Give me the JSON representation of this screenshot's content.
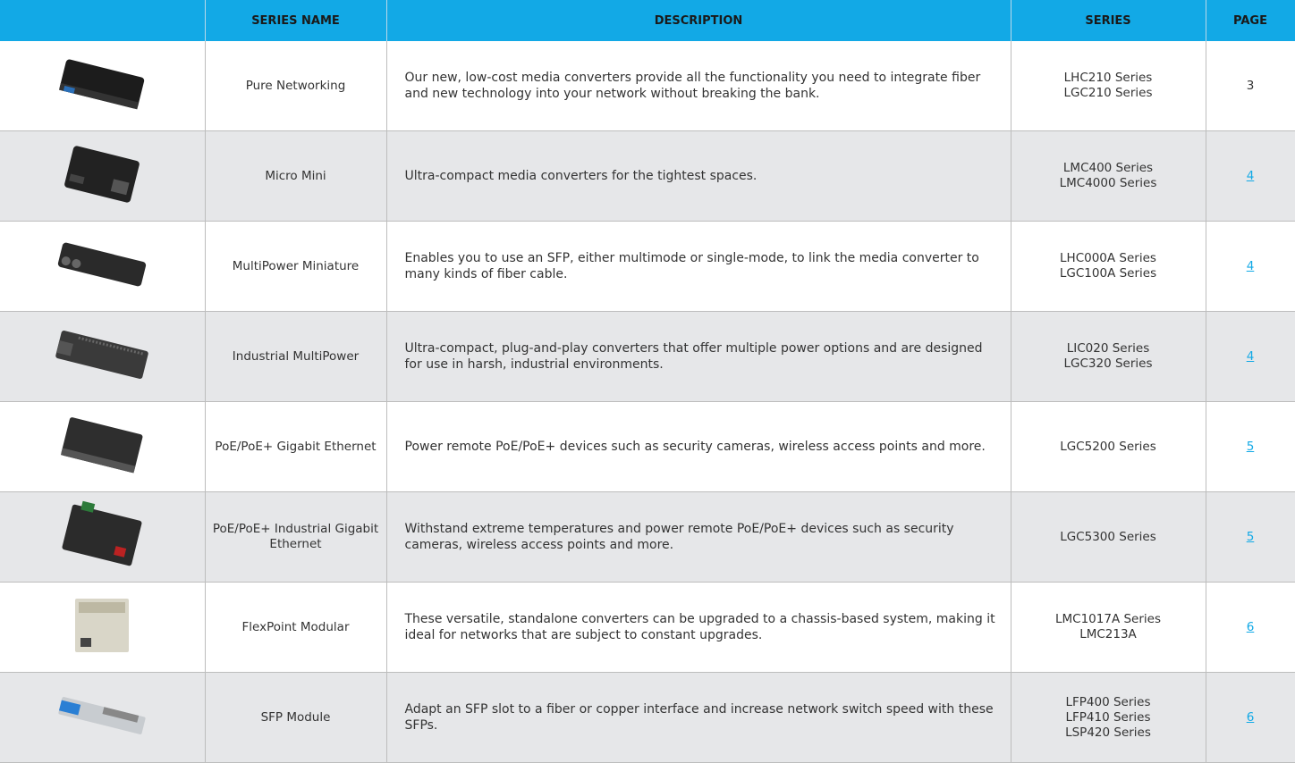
{
  "table": {
    "headers": [
      "SERIES NAME",
      "DESCRIPTION",
      "SERIES",
      "PAGE"
    ],
    "rows": [
      {
        "name": "Pure Networking",
        "description": "Our new, low-cost media converters provide all the functionality you need to integrate fiber and new technology into your network without breaking the bank.",
        "series": [
          "LHC210 Series",
          "LGC210 Series"
        ],
        "page": "3",
        "link": false
      },
      {
        "name": "Micro Mini",
        "description": "Ultra-compact media converters for the tightest spaces.",
        "series": [
          "LMC400 Series",
          "LMC4000 Series"
        ],
        "page": "4",
        "link": true
      },
      {
        "name": "MultiPower Miniature",
        "description": "Enables you to use an SFP, either multimode or single-mode, to link the media converter to many kinds of fiber cable.",
        "series": [
          "LHC000A Series",
          "LGC100A Series"
        ],
        "page": "4",
        "link": true
      },
      {
        "name": "Industrial MultiPower",
        "description": "Ultra-compact, plug-and-play converters that offer multiple power options and are designed for use in harsh, industrial environments.",
        "series": [
          "LIC020 Series",
          "LGC320 Series"
        ],
        "page": "4",
        "link": true
      },
      {
        "name": "PoE/PoE+ Gigabit Ethernet",
        "description": "Power remote PoE/PoE+ devices such as security cameras, wireless access points and more.",
        "series": [
          "LGC5200 Series"
        ],
        "page": "5",
        "link": true
      },
      {
        "name": "PoE/PoE+ Industrial Gigabit Ethernet",
        "description": "Withstand extreme temperatures and power remote PoE/PoE+ devices such as security cameras, wireless access points and more.",
        "series": [
          "LGC5300 Series"
        ],
        "page": "5",
        "link": true
      },
      {
        "name": "FlexPoint Modular",
        "description": "These versatile, standalone converters can be upgraded to a chassis-based system, making it ideal for networks that are subject to constant upgrades.",
        "series": [
          "LMC1017A Series",
          "LMC213A"
        ],
        "page": "6",
        "link": true
      },
      {
        "name": "SFP Module",
        "description": "Adapt an SFP slot to a fiber or copper interface and increase network switch speed with these SFPs.",
        "series": [
          "LFP400 Series",
          "LFP410 Series",
          "LSP420 Series"
        ],
        "page": "6",
        "link": true
      }
    ]
  }
}
